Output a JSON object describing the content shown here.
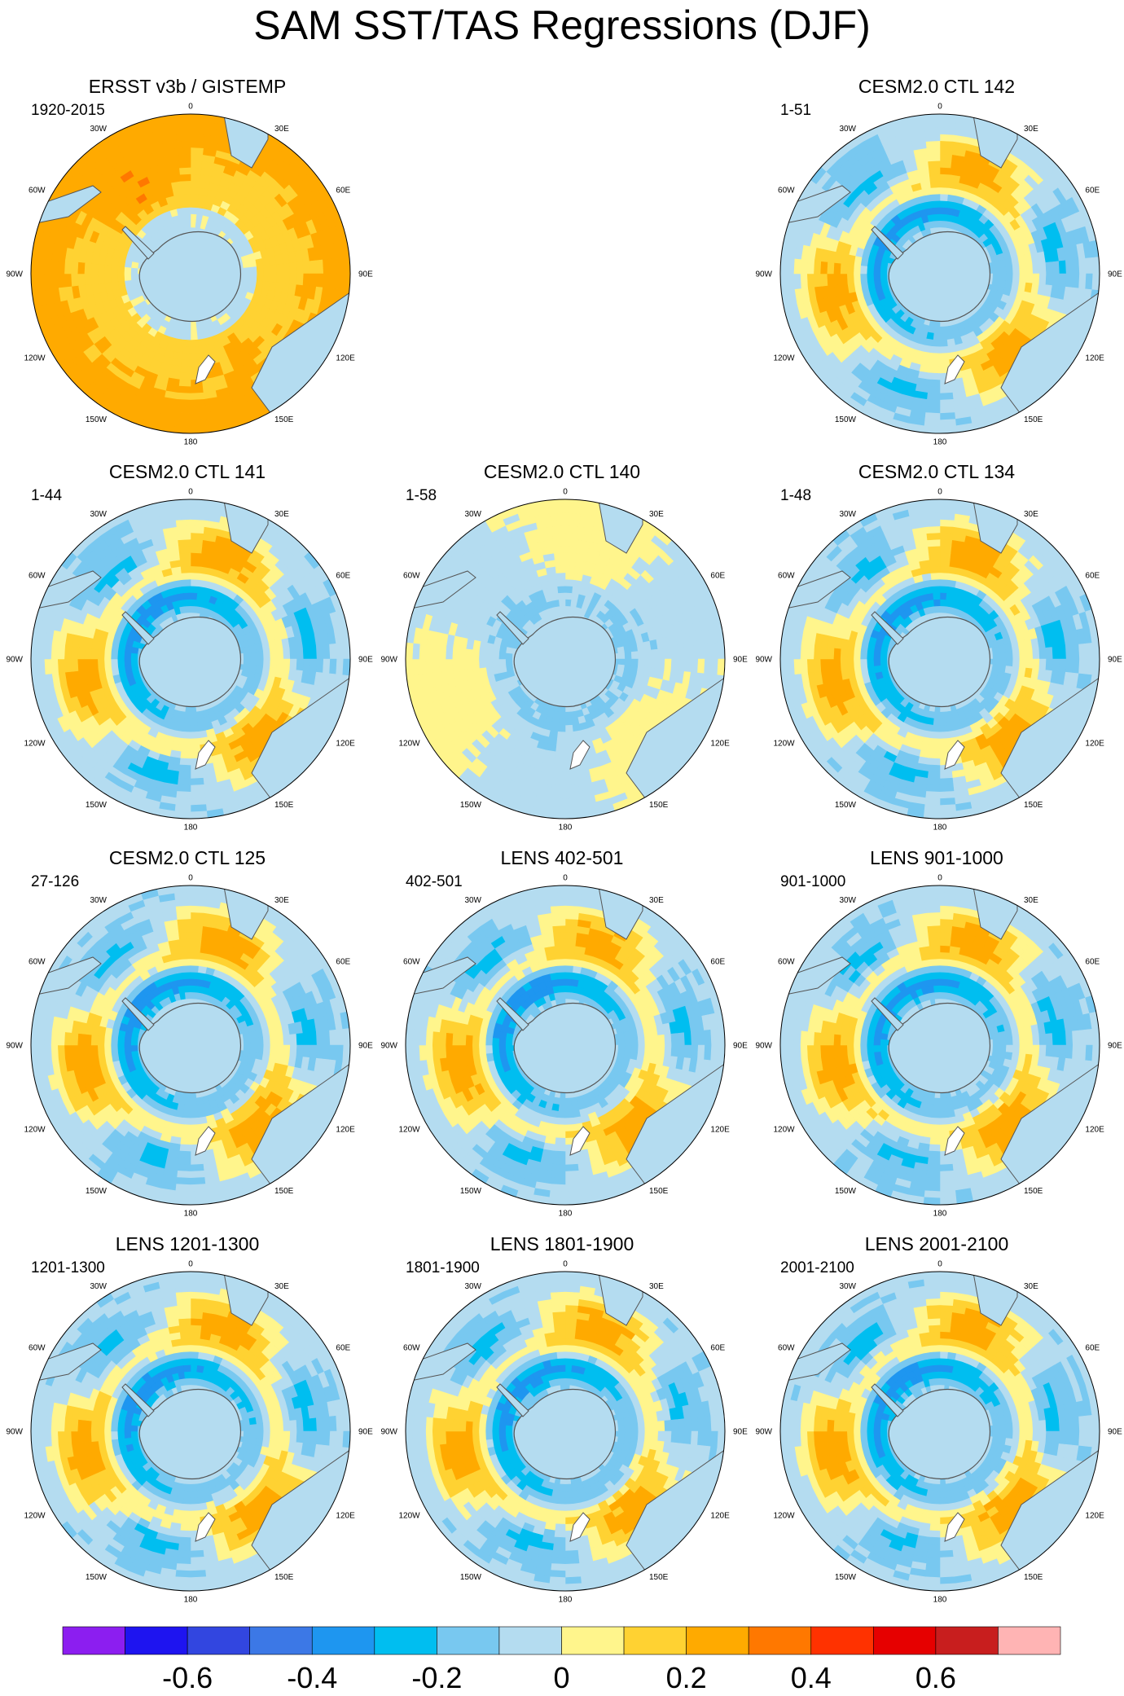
{
  "title": "SAM SST/TAS Regressions (DJF)",
  "lon_labels": [
    "0",
    "30E",
    "60E",
    "90E",
    "120E",
    "150E",
    "180",
    "150W",
    "120W",
    "90W",
    "60W",
    "30W"
  ],
  "palette": [
    "#8c1ef0",
    "#1e14f0",
    "#3246e0",
    "#3c78e6",
    "#1e96f0",
    "#00bef0",
    "#78c8f0",
    "#b4dcf0",
    "#fff58c",
    "#ffd232",
    "#ffaa00",
    "#ff7800",
    "#ff3200",
    "#e60000",
    "#c81e1e",
    "#ffb4b4"
  ],
  "colorbar": {
    "labels": [
      "-0.6",
      "-0.4",
      "-0.2",
      "0",
      "0.2",
      "0.4",
      "0.6"
    ],
    "min": -0.8,
    "max": 0.8,
    "step": 0.1
  },
  "panels": [
    {
      "title": "ERSST v3b / GISTEMP",
      "period": "1920-2015",
      "style": "warm"
    },
    {
      "title": "CESM2.0 CTL 142",
      "period": "1-51",
      "style": "sam"
    },
    {
      "title": "CESM2.0 CTL 141",
      "period": "1-44",
      "style": "sam"
    },
    {
      "title": "CESM2.0 CTL 140",
      "period": "1-58",
      "style": "weak"
    },
    {
      "title": "CESM2.0 CTL 134",
      "period": "1-48",
      "style": "sam"
    },
    {
      "title": "CESM2.0 CTL 125",
      "period": "27-126",
      "style": "sam"
    },
    {
      "title": "LENS 402-501",
      "period": "402-501",
      "style": "sam"
    },
    {
      "title": "LENS 901-1000",
      "period": "901-1000",
      "style": "sam"
    },
    {
      "title": "LENS 1201-1300",
      "period": "1201-1300",
      "style": "sam"
    },
    {
      "title": "LENS 1801-1900",
      "period": "1801-1900",
      "style": "sam"
    },
    {
      "title": "LENS 2001-2100",
      "period": "2001-2100",
      "style": "sam"
    }
  ]
}
